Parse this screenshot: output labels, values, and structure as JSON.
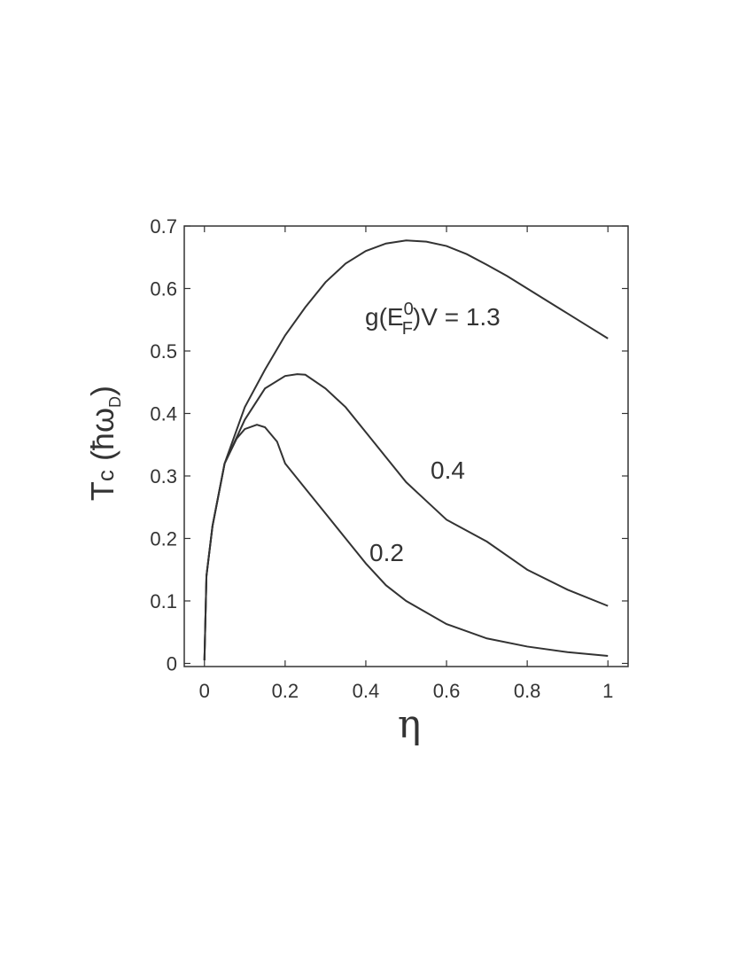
{
  "chart_data": {
    "type": "line",
    "xlabel": "η",
    "ylabel": [
      "T",
      "c",
      " (ħω",
      "D",
      ")"
    ],
    "xlim": [
      -0.05,
      1.05
    ],
    "ylim": [
      -0.005,
      0.7
    ],
    "xticks": [
      0,
      0.2,
      0.4,
      0.6,
      0.8,
      1
    ],
    "yticks": [
      0,
      0.1,
      0.2,
      0.3,
      0.4,
      0.5,
      0.6,
      0.7
    ],
    "grid": false,
    "series": [
      {
        "color": "#333333",
        "x": [
          0,
          0.005,
          0.02,
          0.05,
          0.1,
          0.15,
          0.2,
          0.25,
          0.3,
          0.35,
          0.4,
          0.45,
          0.5,
          0.55,
          0.6,
          0.65,
          0.7,
          0.75,
          0.8,
          0.85,
          0.9,
          0.95,
          1.0
        ],
        "values": [
          0.005,
          0.14,
          0.22,
          0.32,
          0.41,
          0.47,
          0.525,
          0.57,
          0.61,
          0.64,
          0.66,
          0.672,
          0.677,
          0.675,
          0.668,
          0.655,
          0.638,
          0.62,
          0.6,
          0.58,
          0.56,
          0.54,
          0.52
        ]
      },
      {
        "color": "#333333",
        "x": [
          0,
          0.005,
          0.02,
          0.05,
          0.1,
          0.15,
          0.2,
          0.23,
          0.25,
          0.3,
          0.35,
          0.4,
          0.45,
          0.5,
          0.55,
          0.6,
          0.7,
          0.8,
          0.9,
          1.0
        ],
        "values": [
          0.005,
          0.14,
          0.22,
          0.32,
          0.39,
          0.44,
          0.46,
          0.463,
          0.462,
          0.44,
          0.41,
          0.37,
          0.33,
          0.29,
          0.26,
          0.23,
          0.195,
          0.15,
          0.118,
          0.092
        ]
      },
      {
        "color": "#333333",
        "x": [
          0,
          0.005,
          0.02,
          0.05,
          0.08,
          0.1,
          0.13,
          0.15,
          0.18,
          0.2,
          0.25,
          0.3,
          0.35,
          0.4,
          0.45,
          0.5,
          0.6,
          0.7,
          0.8,
          0.9,
          1.0
        ],
        "values": [
          0.005,
          0.14,
          0.22,
          0.32,
          0.36,
          0.375,
          0.382,
          0.378,
          0.355,
          0.32,
          0.28,
          0.24,
          0.2,
          0.16,
          0.125,
          0.1,
          0.063,
          0.04,
          0.027,
          0.018,
          0.012
        ]
      }
    ],
    "annotations": [
      [
        "g(E",
        "0",
        "F",
        ")V = 1.3"
      ],
      [
        "0.4"
      ],
      [
        "0.2"
      ]
    ]
  }
}
